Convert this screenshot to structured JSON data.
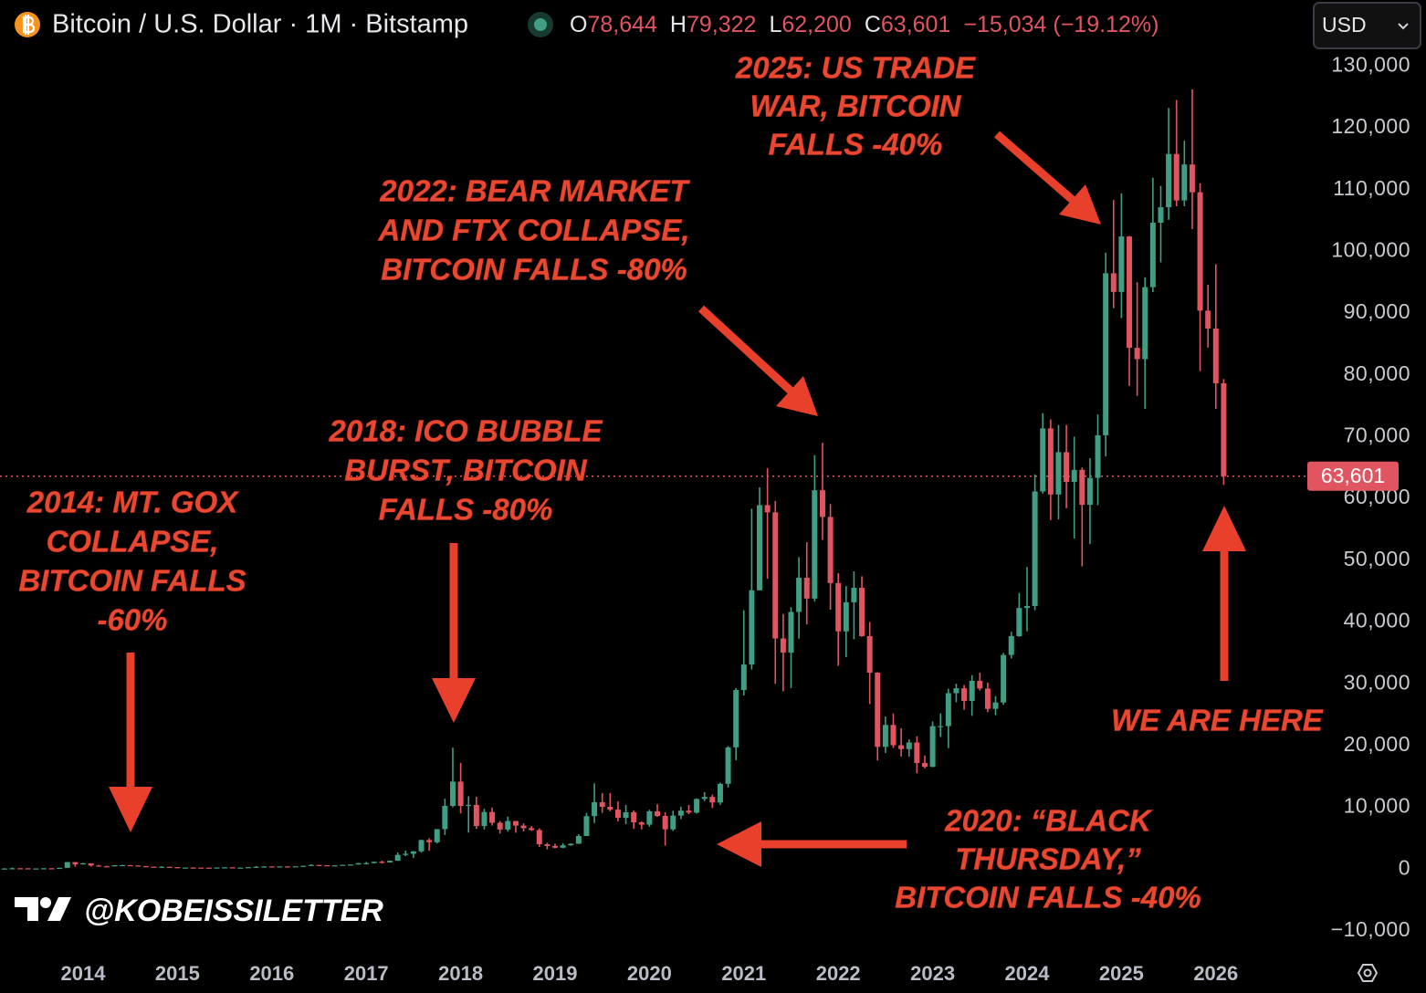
{
  "header": {
    "symbol": "Bitcoin / U.S. Dollar · 1M · Bitstamp",
    "ohlc": [
      {
        "label": "O",
        "value": "78,644"
      },
      {
        "label": "H",
        "value": "79,322"
      },
      {
        "label": "L",
        "value": "62,200"
      },
      {
        "label": "C",
        "value": "63,601"
      }
    ],
    "change": "−15,034 (−19.12%)",
    "currency": "USD"
  },
  "chart_data": {
    "type": "candlestick",
    "up_color": "#3f9e84",
    "down_color": "#e05560",
    "grid": false,
    "ylim": [
      -14000,
      133000
    ],
    "yticks": [
      {
        "value": -10000,
        "label": "−10,000"
      },
      0,
      {
        "value": 10000,
        "label": "10,000"
      },
      {
        "value": 20000,
        "label": "20,000"
      },
      {
        "value": 30000,
        "label": "30,000"
      },
      {
        "value": 40000,
        "label": "40,000"
      },
      {
        "value": 50000,
        "label": "50,000"
      },
      {
        "value": 60000,
        "label": "60,000"
      },
      {
        "value": 70000,
        "label": "70,000"
      },
      {
        "value": 80000,
        "label": "80,000"
      },
      {
        "value": 90000,
        "label": "90,000"
      },
      {
        "value": 100000,
        "label": "100,000"
      },
      {
        "value": 110000,
        "label": "110,000"
      },
      {
        "value": 120000,
        "label": "120,000"
      },
      {
        "value": 130000,
        "label": "130,000"
      }
    ],
    "last_price": {
      "value": 63601,
      "label": "63,601"
    },
    "categories": [
      null,
      null,
      null,
      null,
      null,
      null,
      null,
      null,
      null,
      null,
      "2014",
      null,
      null,
      null,
      null,
      null,
      null,
      null,
      null,
      null,
      null,
      null,
      "2015",
      null,
      null,
      null,
      null,
      null,
      null,
      null,
      null,
      null,
      null,
      null,
      "2016",
      null,
      null,
      null,
      null,
      null,
      null,
      null,
      null,
      null,
      null,
      null,
      "2017",
      null,
      null,
      null,
      null,
      null,
      null,
      null,
      null,
      null,
      null,
      null,
      "2018",
      null,
      null,
      null,
      null,
      null,
      null,
      null,
      null,
      null,
      null,
      null,
      "2019",
      null,
      null,
      null,
      null,
      null,
      null,
      null,
      null,
      null,
      null,
      null,
      "2020",
      null,
      null,
      null,
      null,
      null,
      null,
      null,
      null,
      null,
      null,
      null,
      "2021",
      null,
      null,
      null,
      null,
      null,
      null,
      null,
      null,
      null,
      null,
      null,
      "2022",
      null,
      null,
      null,
      null,
      null,
      null,
      null,
      null,
      null,
      null,
      null,
      "2023",
      null,
      null,
      null,
      null,
      null,
      null,
      null,
      null,
      null,
      null,
      null,
      "2024",
      null,
      null,
      null,
      null,
      null,
      null,
      null,
      null,
      null,
      null,
      null,
      "2025",
      null,
      null,
      null,
      null,
      null,
      null,
      null,
      null,
      null,
      null,
      null,
      "2026",
      null
    ],
    "open": [
      34,
      93,
      139,
      129,
      97,
      106,
      135,
      133,
      204,
      1130,
      754,
      938,
      573,
      458,
      448,
      628,
      640,
      586,
      478,
      387,
      338,
      378,
      320,
      217,
      254,
      244,
      236,
      230,
      263,
      284,
      230,
      236,
      314,
      377,
      430,
      369,
      437,
      416,
      448,
      531,
      673,
      624,
      573,
      609,
      698,
      742,
      964,
      970,
      1190,
      1080,
      1348,
      2300,
      2480,
      2875,
      4703,
      4338,
      6468,
      10233,
      14156,
      10221,
      10397,
      6973,
      9240,
      7494,
      6404,
      7780,
      7037,
      6625,
      6317,
      4017,
      3742,
      3457,
      3854,
      4105,
      5350,
      8574,
      10817,
      10085,
      9631,
      8293,
      9199,
      7569,
      7193,
      9350,
      8599,
      6438,
      8658,
      9461,
      9137,
      11351,
      11680,
      10784,
      13804,
      19700,
      28990,
      33114,
      45137,
      58918,
      57750,
      37332,
      35041,
      41626,
      47166,
      43790,
      61318,
      57005,
      46306,
      38483,
      43194,
      45538,
      37714,
      31792,
      19785,
      23336,
      20050,
      19423,
      20495,
      17168,
      16548,
      23139,
      23147,
      28478,
      29268,
      27219,
      30477,
      29230,
      25931,
      26967,
      34667,
      37712,
      42265,
      42582,
      61130,
      71333,
      60636,
      67491,
      62678,
      64620,
      58970,
      63329,
      70215,
      96449,
      93430,
      102405,
      84374,
      82549,
      94208,
      104638,
      107136,
      115758,
      108236,
      114056,
      109556,
      90394,
      87500,
      78644
    ],
    "high": [
      148,
      266,
      140,
      130,
      111,
      136,
      140,
      220,
      1163,
      1150,
      1000,
      940,
      690,
      550,
      630,
      680,
      660,
      600,
      500,
      420,
      460,
      385,
      320,
      270,
      300,
      260,
      250,
      268,
      300,
      290,
      260,
      330,
      500,
      470,
      460,
      440,
      440,
      460,
      550,
      780,
      700,
      630,
      620,
      720,
      750,
      970,
      1150,
      1200,
      1350,
      1350,
      2700,
      3000,
      2900,
      4780,
      5000,
      6470,
      11400,
      19666,
      17200,
      11780,
      11700,
      9760,
      9950,
      7780,
      8500,
      7800,
      7400,
      6950,
      6600,
      4250,
      4100,
      4200,
      4150,
      5650,
      9100,
      13880,
      12300,
      12300,
      10950,
      10400,
      9500,
      7700,
      9600,
      10500,
      9200,
      9450,
      10080,
      10380,
      11450,
      12470,
      12060,
      14000,
      19900,
      29300,
      41900,
      58330,
      61800,
      64900,
      59600,
      41300,
      42400,
      50500,
      52900,
      67000,
      69000,
      59100,
      47900,
      45800,
      48200,
      47400,
      40000,
      31900,
      24700,
      25200,
      22800,
      21000,
      21500,
      18400,
      23900,
      25200,
      29200,
      30000,
      29800,
      31400,
      31800,
      30200,
      28000,
      35000,
      38400,
      44700,
      48900,
      63900,
      73800,
      72800,
      71900,
      71900,
      70000,
      65000,
      66500,
      73600,
      99800,
      108300,
      109400,
      102500,
      95000,
      95800,
      111900,
      110600,
      123200,
      124500,
      117900,
      126200,
      111000,
      94600,
      97900,
      79322
    ],
    "low": [
      33,
      68,
      79,
      64,
      65,
      99,
      111,
      116,
      185,
      380,
      740,
      410,
      440,
      340,
      420,
      560,
      566,
      440,
      350,
      275,
      310,
      310,
      152,
      212,
      235,
      215,
      225,
      222,
      250,
      200,
      225,
      235,
      300,
      350,
      354,
      365,
      410,
      415,
      440,
      520,
      480,
      540,
      570,
      605,
      690,
      740,
      760,
      915,
      890,
      1060,
      1340,
      2100,
      1830,
      2670,
      2970,
      4160,
      5520,
      10000,
      9030,
      5900,
      6500,
      6430,
      7050,
      5750,
      6070,
      5880,
      6100,
      6200,
      3600,
      3200,
      3350,
      3380,
      3780,
      4080,
      5350,
      7450,
      9110,
      9350,
      7720,
      7300,
      6500,
      6430,
      6850,
      8450,
      3800,
      6150,
      8100,
      8900,
      9000,
      11000,
      9900,
      10400,
      13200,
      17600,
      28100,
      32300,
      45100,
      47000,
      30000,
      28800,
      29300,
      37300,
      39600,
      43300,
      53300,
      42000,
      32900,
      34300,
      37200,
      37600,
      26700,
      17600,
      18800,
      19600,
      18200,
      18200,
      15500,
      16300,
      16500,
      21400,
      19600,
      27000,
      25800,
      24800,
      28900,
      25400,
      24900,
      26600,
      34100,
      37600,
      38500,
      41900,
      60800,
      56500,
      56600,
      58400,
      53500,
      49000,
      52600,
      58900,
      66800,
      90800,
      89200,
      78200,
      76600,
      74500,
      93400,
      98200,
      105100,
      107300,
      107300,
      103600,
      80600,
      84400,
      74500,
      62200
    ],
    "close": [
      93,
      139,
      129,
      97,
      106,
      135,
      133,
      204,
      1130,
      754,
      938,
      573,
      458,
      448,
      628,
      640,
      586,
      478,
      387,
      338,
      378,
      320,
      217,
      254,
      244,
      236,
      230,
      263,
      284,
      230,
      236,
      314,
      377,
      430,
      369,
      437,
      416,
      448,
      531,
      673,
      624,
      573,
      609,
      698,
      742,
      964,
      970,
      1190,
      1080,
      1348,
      2300,
      2480,
      2875,
      4703,
      4338,
      6468,
      10233,
      14156,
      10221,
      10397,
      6973,
      9240,
      7494,
      6404,
      7780,
      7037,
      6625,
      6317,
      4017,
      3742,
      3457,
      3854,
      4105,
      5350,
      8574,
      10817,
      10085,
      9631,
      8293,
      9199,
      7569,
      7193,
      9350,
      8599,
      6438,
      8658,
      9461,
      9137,
      11351,
      11680,
      10784,
      13804,
      19700,
      28990,
      33114,
      45137,
      58918,
      57750,
      37332,
      35041,
      41626,
      47166,
      43790,
      61318,
      57005,
      46306,
      38483,
      43194,
      45538,
      37714,
      31792,
      19785,
      23336,
      20050,
      19423,
      20495,
      17168,
      16548,
      23139,
      23147,
      28478,
      29268,
      27219,
      30477,
      29230,
      25931,
      26967,
      34667,
      37712,
      42265,
      42582,
      61130,
      71333,
      60636,
      67491,
      62678,
      64620,
      58970,
      63329,
      70215,
      96449,
      93430,
      102405,
      84374,
      82549,
      94208,
      104638,
      107136,
      115758,
      108236,
      114056,
      109556,
      90394,
      87500,
      78644,
      63601
    ],
    "annotations": [
      {
        "lines": [
          "2014: MT. GOX",
          "COLLAPSE,",
          "BITCOIN FALLS",
          "-60%"
        ]
      },
      {
        "lines": [
          "2018: ICO BUBBLE",
          "BURST, BITCOIN",
          "FALLS -80%"
        ]
      },
      {
        "lines": [
          "2022: BEAR MARKET",
          "AND FTX COLLAPSE,",
          "BITCOIN FALLS -80%"
        ]
      },
      {
        "lines": [
          "2025: US TRADE",
          "WAR, BITCOIN",
          "FALLS -40%"
        ]
      },
      {
        "lines": [
          "2020: “BLACK",
          "THURSDAY,”",
          "BITCOIN FALLS -40%"
        ]
      },
      {
        "lines": [
          "WE ARE HERE"
        ]
      }
    ],
    "watermark": "@KOBEISSILETTER"
  }
}
